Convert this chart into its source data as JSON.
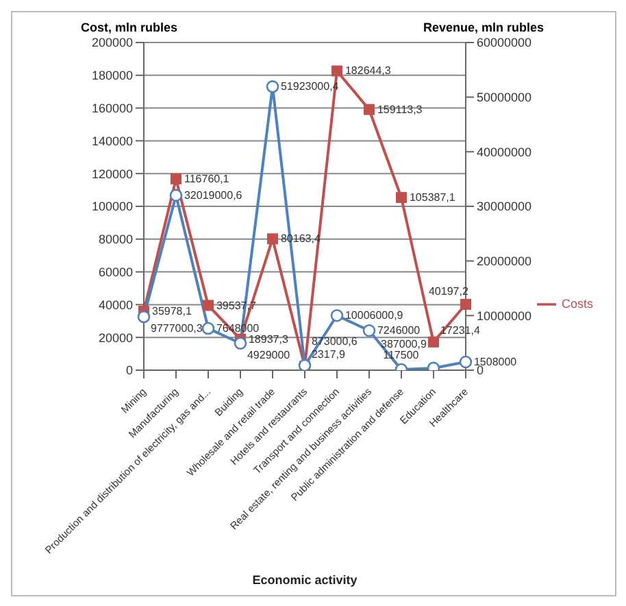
{
  "chart_data": {
    "type": "line",
    "xlabel": "Economic activity",
    "ylabel": "Cost, mln rubles",
    "y2label": "Revenue, mln rubles",
    "categories": [
      "Mining",
      "Manufacturing",
      "Production and distribution of electricity, gas and...",
      "Buiding",
      "Wholesale and retail trade",
      "Hotels and restaurants",
      "Transport and connection",
      "Real estate, renting and business activities",
      "Public administration and defense",
      "Education",
      "Healthcare"
    ],
    "series": [
      {
        "name": "Costs",
        "color": "#c0504d",
        "marker": "square",
        "values": [
          35978.1,
          116760.1,
          39537.7,
          18937.3,
          80163.4,
          2317.9,
          182644.3,
          159113.3,
          105387.1,
          17231.4,
          40197.2
        ],
        "value_labels": [
          "35978,1",
          "116760,1",
          "39537,7",
          "18937,3",
          "80163,4",
          "2317,9",
          "182644,3",
          "159113,3",
          "105387,1",
          "17231,4",
          "40197,2"
        ]
      },
      {
        "color": "#4f81bd",
        "marker": "circle",
        "axis": "y2",
        "values": [
          9777000.3,
          32019000.6,
          7648000,
          4929000,
          51923000.4,
          873000.6,
          10006000.9,
          7246000,
          117500,
          387000.9,
          1508000
        ],
        "value_labels": [
          "9777000,3",
          "32019000,6",
          "7648000",
          "4929000",
          "51923000,4",
          "873000,6",
          "10006000,9",
          "7246000",
          "117500",
          "387000,9",
          "1508000"
        ]
      }
    ],
    "ylim": [
      0,
      200000
    ],
    "yticks": [
      0,
      20000,
      40000,
      60000,
      80000,
      100000,
      120000,
      140000,
      160000,
      180000,
      200000
    ],
    "y2lim": [
      0,
      60000000
    ],
    "y2ticks": [
      0,
      10000000,
      20000000,
      30000000,
      40000000,
      50000000,
      60000000
    ],
    "grid": "y",
    "legend": "right"
  }
}
